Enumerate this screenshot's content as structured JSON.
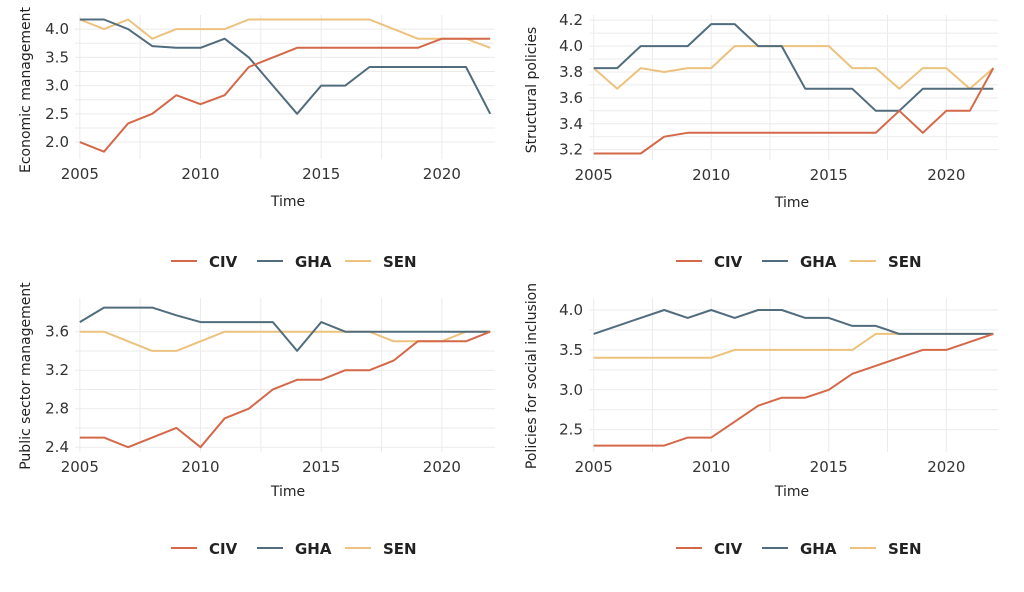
{
  "colors": {
    "CIV": "#d4694a",
    "GHA": "#516c7d",
    "SEN": "#ecc27e"
  },
  "legend": {
    "items": [
      "CIV",
      "GHA",
      "SEN"
    ]
  },
  "chart_data": [
    {
      "type": "line",
      "title": "",
      "xlabel": "Time",
      "ylabel": "Economic management",
      "xlim": [
        2004.8,
        2022.2
      ],
      "ylim": [
        1.7,
        4.25
      ],
      "xticks": [
        2005,
        2010,
        2015,
        2020
      ],
      "yticks": [
        2.0,
        2.5,
        3.0,
        3.5,
        4.0
      ],
      "ytick_labels": [
        "2.0",
        "2.5",
        "3.0",
        "3.5",
        "4.0"
      ],
      "x": [
        2005,
        2006,
        2007,
        2008,
        2009,
        2010,
        2011,
        2012,
        2013,
        2014,
        2015,
        2016,
        2017,
        2018,
        2019,
        2020,
        2021,
        2022
      ],
      "series": [
        {
          "name": "CIV",
          "values": [
            2.0,
            1.83,
            2.33,
            2.5,
            2.83,
            2.67,
            2.83,
            3.33,
            3.5,
            3.67,
            3.67,
            3.67,
            3.67,
            3.67,
            3.67,
            3.83,
            3.83,
            3.83
          ]
        },
        {
          "name": "GHA",
          "values": [
            4.17,
            4.17,
            4.0,
            3.7,
            3.67,
            3.67,
            3.83,
            3.5,
            3.0,
            2.5,
            3.0,
            3.0,
            3.33,
            3.33,
            3.33,
            3.33,
            3.33,
            2.5
          ]
        },
        {
          "name": "SEN",
          "values": [
            4.17,
            4.0,
            4.17,
            3.83,
            4.0,
            4.0,
            4.0,
            4.17,
            4.17,
            4.17,
            4.17,
            4.17,
            4.17,
            4.0,
            3.83,
            3.83,
            3.83,
            3.67
          ]
        }
      ],
      "legend": "bottom",
      "grid": true
    },
    {
      "type": "line",
      "title": "",
      "xlabel": "Time",
      "ylabel": "Structural policies",
      "xlim": [
        2004.8,
        2022.2
      ],
      "ylim": [
        3.12,
        4.24
      ],
      "xticks": [
        2005,
        2010,
        2015,
        2020
      ],
      "yticks": [
        3.2,
        3.4,
        3.6,
        3.8,
        4.0,
        4.2
      ],
      "ytick_labels": [
        "3.2",
        "3.4",
        "3.6",
        "3.8",
        "4.0",
        "4.2"
      ],
      "x": [
        2005,
        2006,
        2007,
        2008,
        2009,
        2010,
        2011,
        2012,
        2013,
        2014,
        2015,
        2016,
        2017,
        2018,
        2019,
        2020,
        2021,
        2022
      ],
      "series": [
        {
          "name": "CIV",
          "values": [
            3.17,
            3.17,
            3.17,
            3.3,
            3.33,
            3.33,
            3.33,
            3.33,
            3.33,
            3.33,
            3.33,
            3.33,
            3.33,
            3.5,
            3.33,
            3.5,
            3.5,
            3.83
          ]
        },
        {
          "name": "GHA",
          "values": [
            3.83,
            3.83,
            4.0,
            4.0,
            4.0,
            4.17,
            4.17,
            4.0,
            4.0,
            3.67,
            3.67,
            3.67,
            3.5,
            3.5,
            3.67,
            3.67,
            3.67,
            3.67
          ]
        },
        {
          "name": "SEN",
          "values": [
            3.83,
            3.67,
            3.83,
            3.8,
            3.83,
            3.83,
            4.0,
            4.0,
            4.0,
            4.0,
            4.0,
            3.83,
            3.83,
            3.67,
            3.83,
            3.83,
            3.67,
            3.83
          ]
        }
      ],
      "legend": "bottom",
      "grid": true
    },
    {
      "type": "line",
      "title": "",
      "xlabel": "Time",
      "ylabel": "Public sector management",
      "xlim": [
        2004.8,
        2022.2
      ],
      "ylim": [
        2.35,
        3.95
      ],
      "xticks": [
        2005,
        2010,
        2015,
        2020
      ],
      "yticks": [
        2.4,
        2.8,
        3.2,
        3.6
      ],
      "ytick_labels": [
        "2.4",
        "2.8",
        "3.2",
        "3.6"
      ],
      "x": [
        2005,
        2006,
        2007,
        2008,
        2009,
        2010,
        2011,
        2012,
        2013,
        2014,
        2015,
        2016,
        2017,
        2018,
        2019,
        2020,
        2021,
        2022
      ],
      "series": [
        {
          "name": "CIV",
          "values": [
            2.5,
            2.5,
            2.4,
            2.5,
            2.6,
            2.4,
            2.7,
            2.8,
            3.0,
            3.1,
            3.1,
            3.2,
            3.2,
            3.3,
            3.5,
            3.5,
            3.5,
            3.6
          ]
        },
        {
          "name": "GHA",
          "values": [
            3.7,
            3.85,
            3.85,
            3.85,
            3.77,
            3.7,
            3.7,
            3.7,
            3.7,
            3.4,
            3.7,
            3.6,
            3.6,
            3.6,
            3.6,
            3.6,
            3.6,
            3.6
          ]
        },
        {
          "name": "SEN",
          "values": [
            3.6,
            3.6,
            3.5,
            3.4,
            3.4,
            3.5,
            3.6,
            3.6,
            3.6,
            3.6,
            3.6,
            3.6,
            3.6,
            3.5,
            3.5,
            3.5,
            3.6,
            3.6
          ]
        }
      ],
      "legend": "bottom",
      "grid": true
    },
    {
      "type": "line",
      "title": "",
      "xlabel": "Time",
      "ylabel": "Policies for social inclusion",
      "xlim": [
        2004.8,
        2022.2
      ],
      "ylim": [
        2.22,
        4.15
      ],
      "xticks": [
        2005,
        2010,
        2015,
        2020
      ],
      "yticks": [
        2.5,
        3.0,
        3.5,
        4.0
      ],
      "ytick_labels": [
        "2.5",
        "3.0",
        "3.5",
        "4.0"
      ],
      "x": [
        2005,
        2006,
        2007,
        2008,
        2009,
        2010,
        2011,
        2012,
        2013,
        2014,
        2015,
        2016,
        2017,
        2018,
        2019,
        2020,
        2021,
        2022
      ],
      "series": [
        {
          "name": "CIV",
          "values": [
            2.3,
            2.3,
            2.3,
            2.3,
            2.4,
            2.4,
            2.6,
            2.8,
            2.9,
            2.9,
            3.0,
            3.2,
            3.3,
            3.4,
            3.5,
            3.5,
            3.6,
            3.7
          ]
        },
        {
          "name": "GHA",
          "values": [
            3.7,
            3.8,
            3.9,
            4.0,
            3.9,
            4.0,
            3.9,
            4.0,
            4.0,
            3.9,
            3.9,
            3.8,
            3.8,
            3.7,
            3.7,
            3.7,
            3.7,
            3.7
          ]
        },
        {
          "name": "SEN",
          "values": [
            3.4,
            3.4,
            3.4,
            3.4,
            3.4,
            3.4,
            3.5,
            3.5,
            3.5,
            3.5,
            3.5,
            3.5,
            3.7,
            3.7,
            3.7,
            3.7,
            3.7,
            3.7
          ]
        }
      ],
      "legend": "bottom",
      "grid": true
    }
  ]
}
